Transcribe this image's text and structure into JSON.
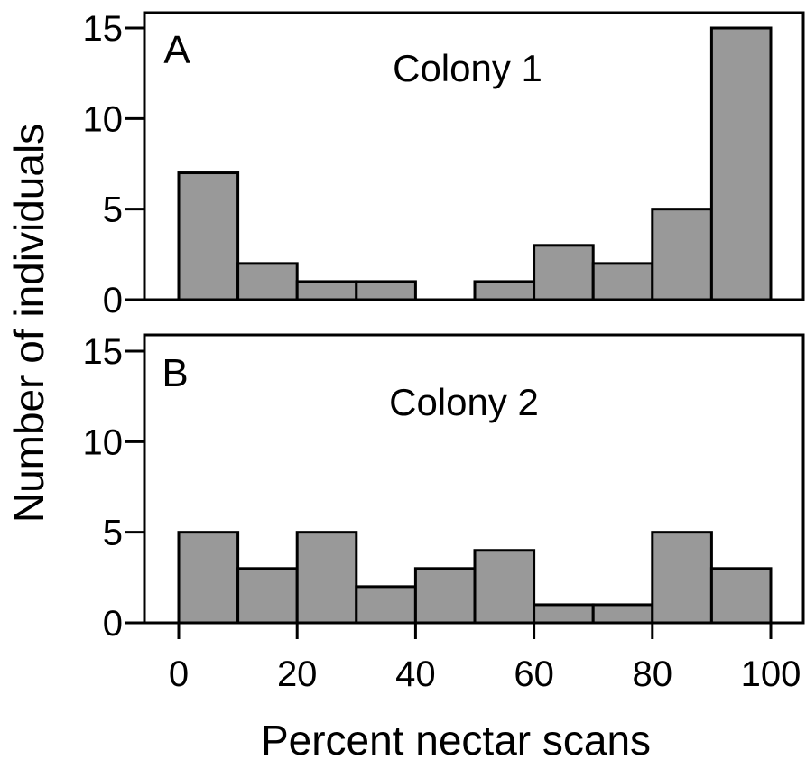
{
  "figure": {
    "ylabel": "Number of individuals",
    "xlabel": "Percent nectar scans"
  },
  "chart_data": [
    {
      "type": "bar",
      "panel_label": "A",
      "title": "Colony 1",
      "bin_edges": [
        0,
        10,
        20,
        30,
        40,
        50,
        60,
        70,
        80,
        90,
        100
      ],
      "values": [
        7,
        2,
        1,
        1,
        0,
        1,
        3,
        2,
        5,
        15
      ],
      "ylim": [
        0,
        15
      ],
      "yticks": [
        "0",
        "5",
        "10",
        "15"
      ],
      "xticks": [],
      "bar_color": "#999999",
      "grid": false
    },
    {
      "type": "bar",
      "panel_label": "B",
      "title": "Colony 2",
      "bin_edges": [
        0,
        10,
        20,
        30,
        40,
        50,
        60,
        70,
        80,
        90,
        100
      ],
      "values": [
        5,
        3,
        5,
        2,
        3,
        4,
        1,
        1,
        5,
        3
      ],
      "ylim": [
        0,
        15
      ],
      "yticks": [
        "0",
        "5",
        "10",
        "15"
      ],
      "xticks": [
        "0",
        "20",
        "40",
        "60",
        "80",
        "100"
      ],
      "bar_color": "#999999",
      "grid": false
    }
  ]
}
